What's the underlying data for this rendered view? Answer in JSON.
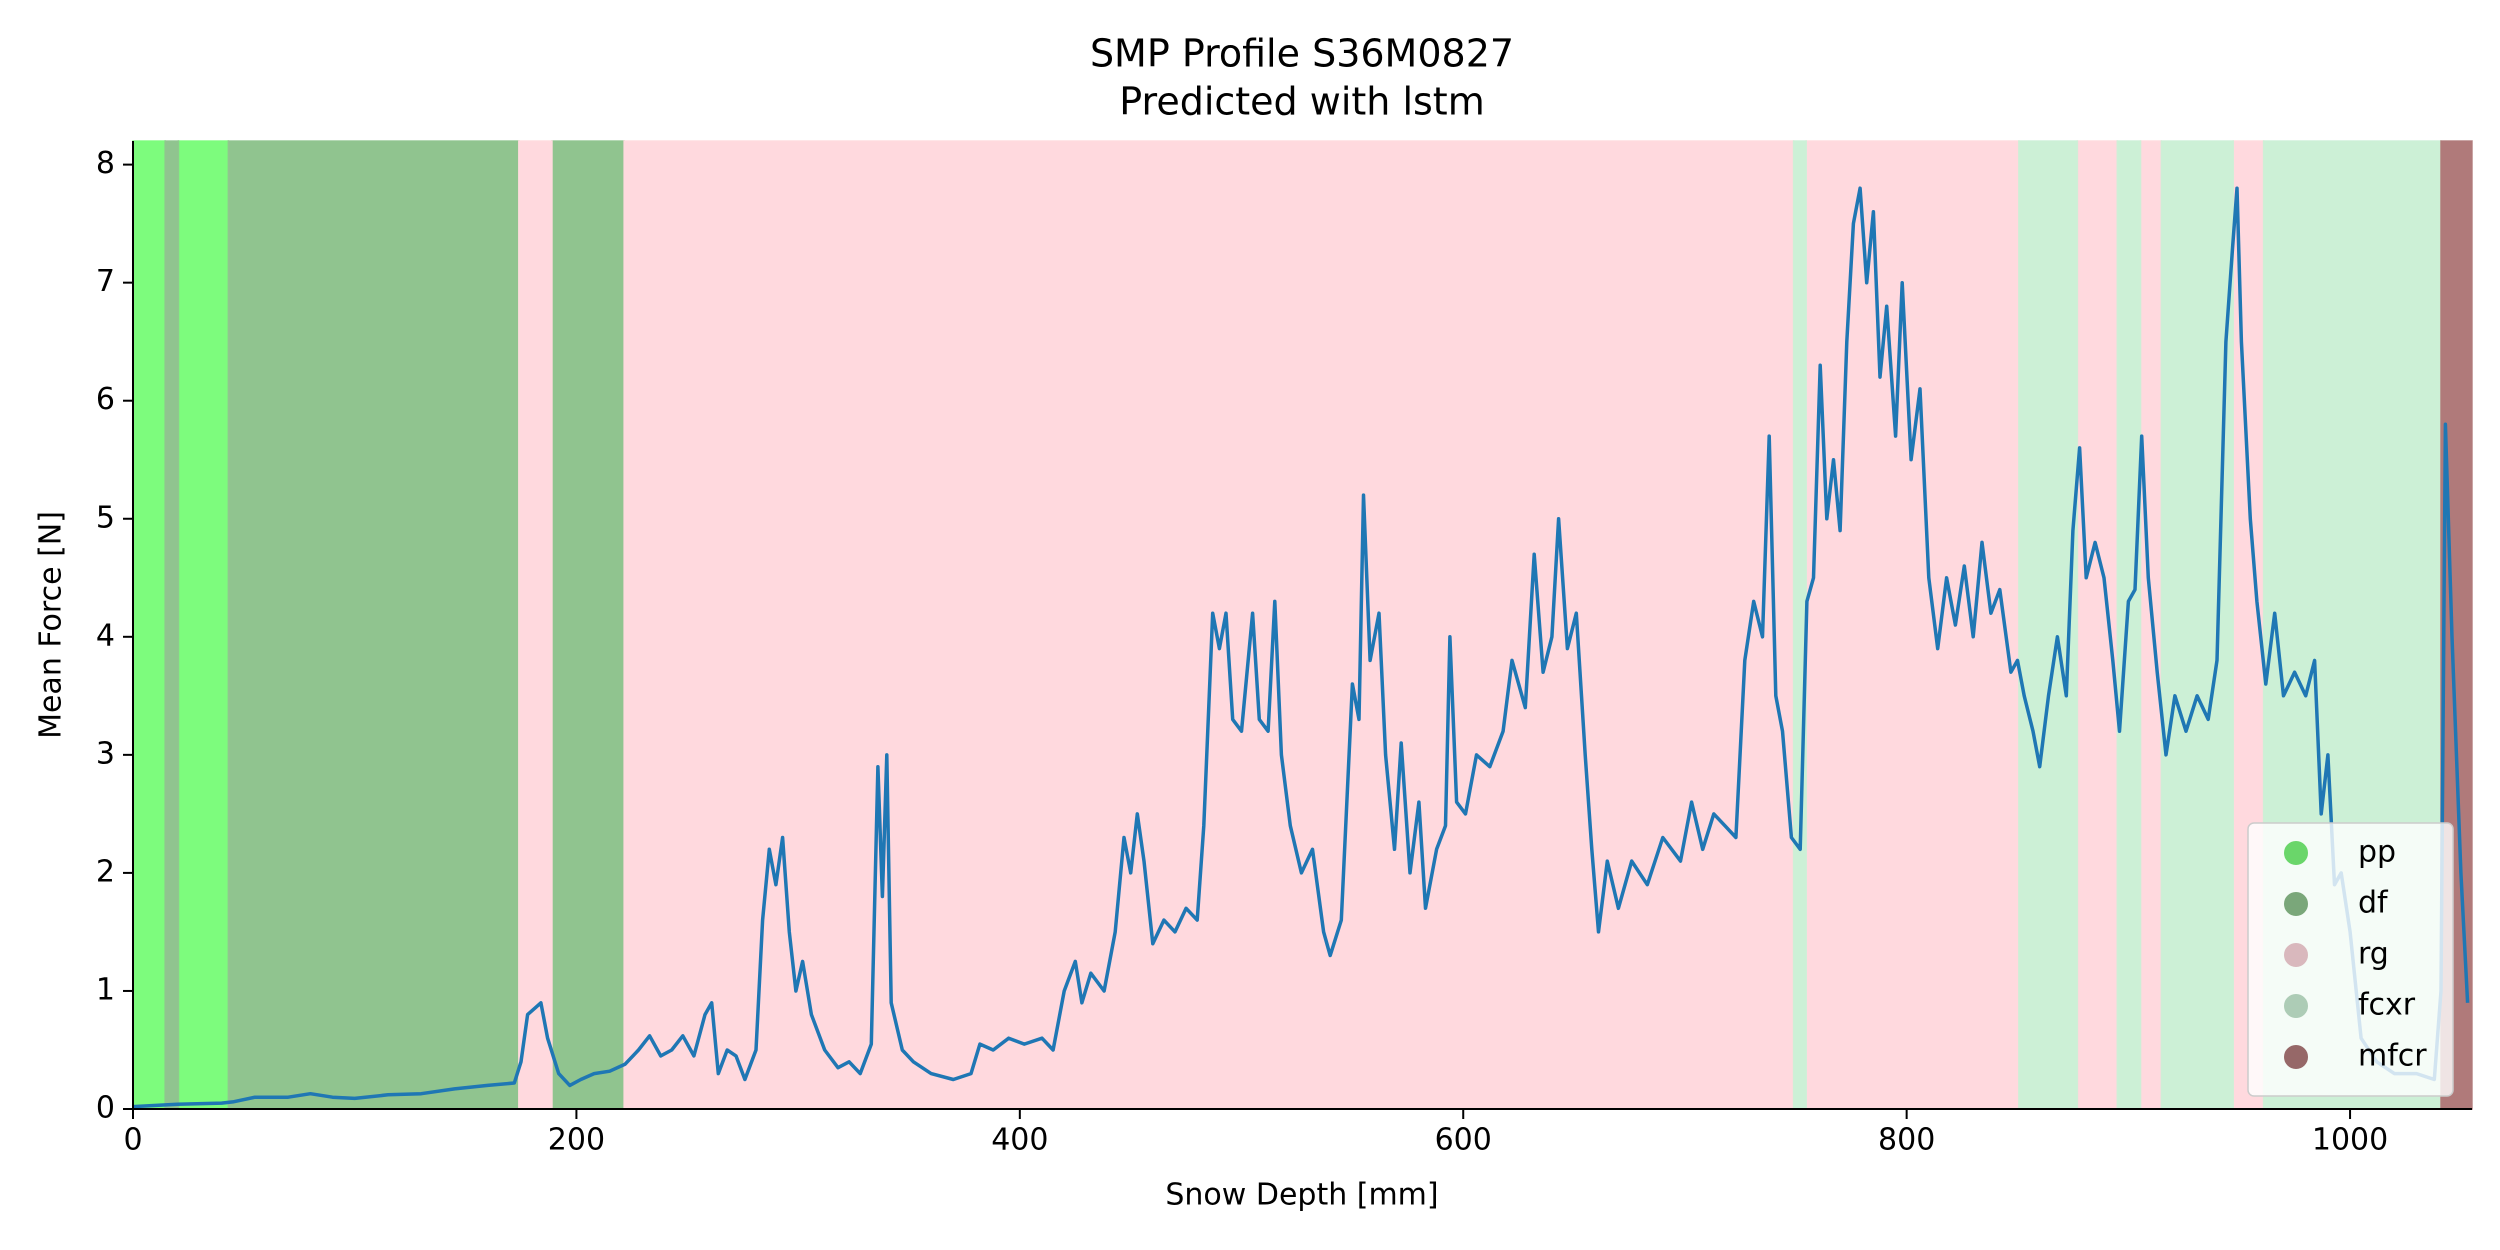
{
  "chart_data": {
    "type": "line",
    "title": "SMP Profile S36M0827",
    "subtitle": "Predicted with lstm",
    "x_label": "Snow Depth [mm]",
    "y_label": "Mean Force [N]",
    "xlim": [
      0,
      1055
    ],
    "ylim": [
      0,
      8.2
    ],
    "xticks": [
      0,
      200,
      400,
      600,
      800,
      1000
    ],
    "yticks": [
      0,
      1,
      2,
      3,
      4,
      5,
      6,
      7,
      8
    ],
    "legend": "lower right",
    "color": "#1f77b4",
    "classes": [
      {
        "name": "pp",
        "color": "#7dfc7d",
        "spans": [
          [
            0,
            14.5
          ],
          [
            20.5,
            43
          ]
        ]
      },
      {
        "name": "df",
        "color": "#90c48f",
        "spans": [
          [
            14.5,
            20.5
          ],
          [
            43,
            174
          ],
          [
            189,
            221.5
          ]
        ]
      },
      {
        "name": "rg",
        "color": "#ffd9de",
        "spans": [
          [
            174,
            189
          ],
          [
            221.5,
            749
          ],
          [
            754.7,
            850.6
          ],
          [
            877,
            895
          ],
          [
            905.5,
            914.9
          ],
          [
            947.3,
            961
          ]
        ]
      },
      {
        "name": "fcxr",
        "color": "#ccf0d6",
        "spans": [
          [
            749,
            754.7
          ],
          [
            850.6,
            877
          ],
          [
            895,
            905.5
          ],
          [
            914.9,
            947.3
          ],
          [
            961,
            1041
          ]
        ]
      },
      {
        "name": "mfcr",
        "color": "#b07a7a",
        "spans": [
          [
            1041,
            1055
          ]
        ]
      }
    ],
    "x": [
      0,
      20,
      40,
      45,
      55,
      70,
      80,
      90,
      100,
      115,
      130,
      145,
      160,
      172,
      175,
      178,
      181,
      184,
      187,
      192,
      197,
      202,
      208,
      215,
      222,
      228,
      233,
      238,
      243,
      248,
      253,
      258,
      261,
      264,
      268,
      272,
      276,
      281,
      284,
      287,
      290,
      293,
      296,
      299,
      302,
      306,
      312,
      318,
      323,
      328,
      333,
      336,
      338,
      340,
      342,
      347,
      352,
      360,
      370,
      378,
      382,
      388,
      395,
      402,
      410,
      415,
      420,
      425,
      428,
      432,
      438,
      443,
      447,
      450,
      453,
      456,
      460,
      465,
      470,
      475,
      480,
      483,
      487,
      490,
      493,
      496,
      500,
      505,
      508,
      512,
      515,
      518,
      522,
      527,
      532,
      537,
      540,
      545,
      550,
      553,
      555,
      558,
      562,
      565,
      569,
      572,
      576,
      580,
      583,
      588,
      592,
      594,
      597,
      601,
      606,
      612,
      618,
      622,
      628,
      632,
      636,
      640,
      643,
      647,
      651,
      655,
      658,
      661,
      665,
      670,
      676,
      683,
      690,
      698,
      703,
      708,
      713,
      718,
      723,
      727,
      731,
      735,
      738,
      741,
      744,
      748,
      752,
      755,
      758,
      761,
      764,
      767,
      770,
      773,
      776,
      779,
      782,
      785,
      788,
      791,
      795,
      798,
      802,
      806,
      810,
      814,
      818,
      822,
      826,
      830,
      834,
      838,
      842,
      847,
      850,
      853,
      857,
      860,
      864,
      868,
      872,
      875,
      878,
      881,
      885,
      889,
      893,
      896,
      900,
      903,
      906,
      909,
      913,
      917,
      921,
      926,
      931,
      936,
      940,
      944,
      947,
      949,
      951,
      955,
      958,
      962,
      966,
      970,
      975,
      980,
      984,
      987,
      990,
      993,
      996,
      1000,
      1005,
      1012,
      1020,
      1030,
      1038,
      1041,
      1043,
      1046,
      1050,
      1053
    ],
    "values": [
      0.02,
      0.04,
      0.05,
      0.06,
      0.1,
      0.1,
      0.13,
      0.1,
      0.09,
      0.12,
      0.13,
      0.17,
      0.2,
      0.22,
      0.4,
      0.8,
      0.85,
      0.9,
      0.6,
      0.3,
      0.2,
      0.25,
      0.3,
      0.32,
      0.38,
      0.5,
      0.62,
      0.45,
      0.5,
      0.62,
      0.45,
      0.8,
      0.9,
      0.3,
      0.5,
      0.45,
      0.25,
      0.5,
      1.6,
      2.2,
      1.9,
      2.3,
      1.5,
      1.0,
      1.25,
      0.8,
      0.5,
      0.35,
      0.4,
      0.3,
      0.55,
      2.9,
      1.8,
      3.0,
      0.9,
      0.5,
      0.4,
      0.3,
      0.25,
      0.3,
      0.55,
      0.5,
      0.6,
      0.55,
      0.6,
      0.5,
      1.0,
      1.25,
      0.9,
      1.15,
      1.0,
      1.5,
      2.3,
      2.0,
      2.5,
      2.1,
      1.4,
      1.6,
      1.5,
      1.7,
      1.6,
      2.4,
      4.2,
      3.9,
      4.2,
      3.3,
      3.2,
      4.2,
      3.3,
      3.2,
      4.3,
      3.0,
      2.4,
      2.0,
      2.2,
      1.5,
      1.3,
      1.6,
      3.6,
      3.3,
      5.2,
      3.8,
      4.2,
      3.0,
      2.2,
      3.1,
      2.0,
      2.6,
      1.7,
      2.2,
      2.4,
      4.0,
      2.6,
      2.5,
      3.0,
      2.9,
      3.2,
      3.8,
      3.4,
      4.7,
      3.7,
      4.0,
      5.0,
      3.9,
      4.2,
      3.0,
      2.2,
      1.5,
      2.1,
      1.7,
      2.1,
      1.9,
      2.3,
      2.1,
      2.6,
      2.2,
      2.5,
      2.4,
      2.3,
      3.8,
      4.3,
      4.0,
      5.7,
      3.5,
      3.2,
      2.3,
      2.2,
      4.3,
      4.5,
      6.3,
      5.0,
      5.5,
      4.9,
      6.5,
      7.5,
      7.8,
      7.0,
      7.6,
      6.2,
      6.8,
      5.7,
      7.0,
      5.5,
      6.1,
      4.5,
      3.9,
      4.5,
      4.1,
      4.6,
      4.0,
      4.8,
      4.2,
      4.4,
      3.7,
      3.8,
      3.5,
      3.2,
      2.9,
      3.5,
      4.0,
      3.5,
      4.9,
      5.6,
      4.5,
      4.8,
      4.5,
      3.8,
      3.2,
      4.3,
      4.4,
      5.7,
      4.5,
      3.7,
      3.0,
      3.5,
      3.2,
      3.5,
      3.3,
      3.8,
      6.5,
      7.3,
      7.8,
      6.5,
      5.0,
      4.3,
      3.6,
      4.2,
      3.5,
      3.7,
      3.5,
      3.8,
      2.5,
      3.0,
      1.9,
      2.0,
      1.5,
      0.6,
      0.4,
      0.3,
      0.3,
      0.25,
      1.0,
      5.8,
      4.0,
      2.0,
      0.9
    ]
  }
}
